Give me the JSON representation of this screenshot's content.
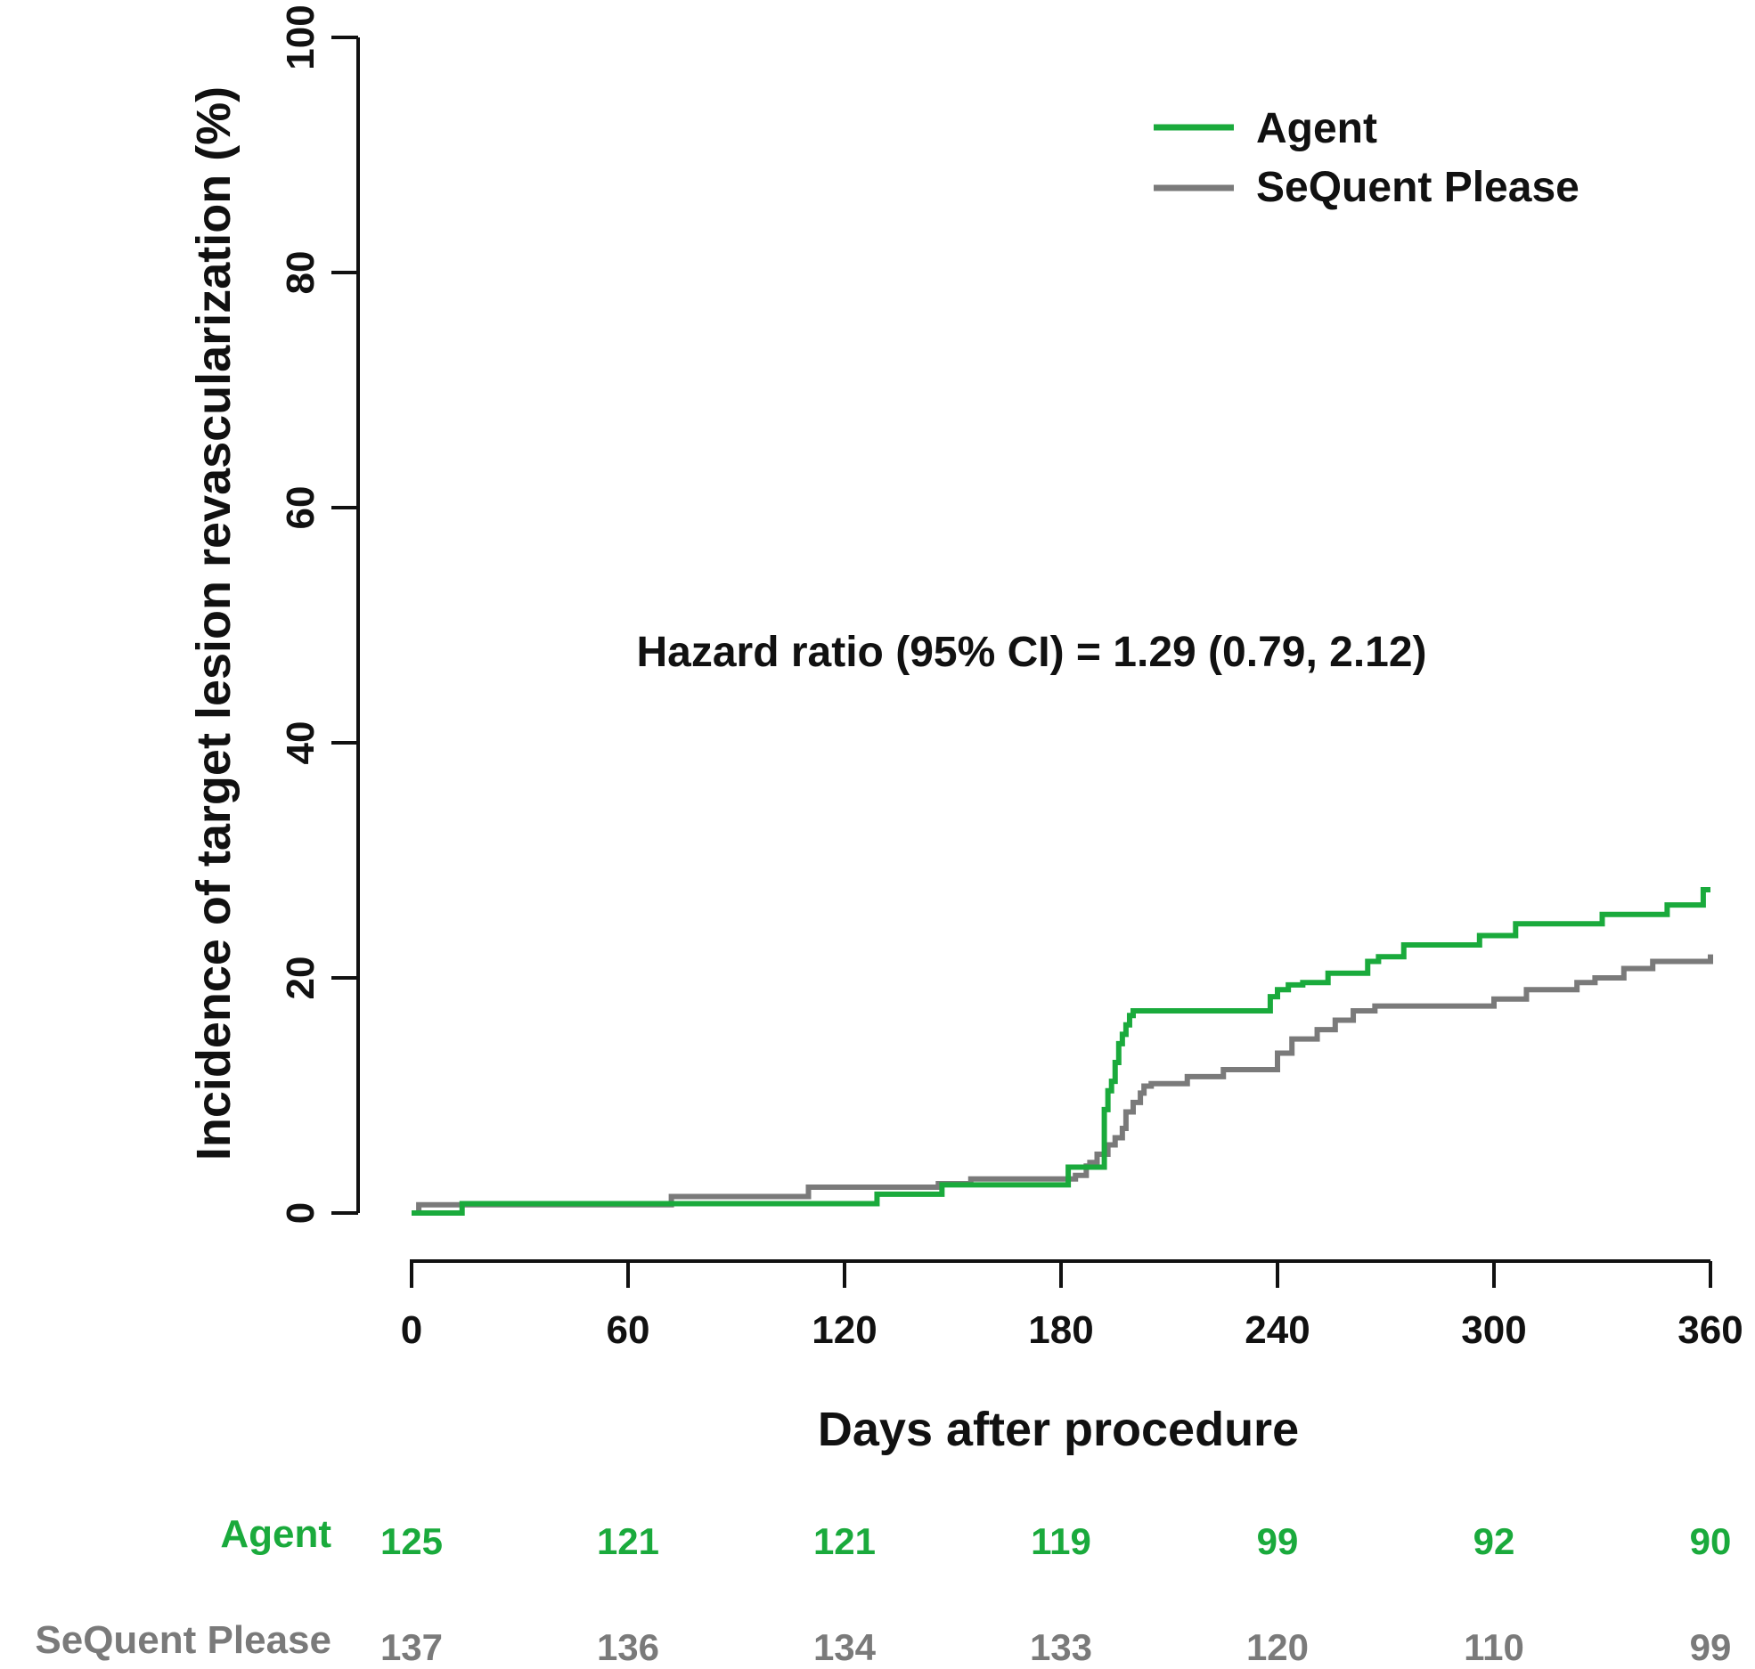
{
  "chart_data": {
    "type": "line",
    "step": true,
    "xlabel": "Days after procedure",
    "ylabel": "Incidence of target lesion revascularization (%)",
    "xlim": [
      0,
      360
    ],
    "ylim": [
      0,
      100
    ],
    "x_ticks": [
      0,
      60,
      120,
      180,
      240,
      300,
      360
    ],
    "y_ticks": [
      0,
      20,
      40,
      60,
      80,
      100
    ],
    "grid": false,
    "legend_position": "top-right",
    "annotation": "Hazard ratio (95% CI) = 1.29 (0.79, 2.12)",
    "series": [
      {
        "name": "Agent",
        "color": "#1aaa3c",
        "x": [
          0,
          14,
          129,
          147,
          182,
          192,
          193,
          194,
          195,
          196,
          197,
          198,
          199,
          200,
          202,
          238,
          240,
          243,
          247,
          254,
          265,
          268,
          275,
          296,
          306,
          330,
          348,
          358,
          360
        ],
        "y": [
          0,
          0.8,
          1.6,
          2.4,
          3.9,
          8.8,
          10.4,
          11.2,
          12.8,
          14.4,
          15.2,
          16.0,
          16.8,
          17.2,
          17.2,
          18.4,
          19.0,
          19.4,
          19.6,
          20.4,
          21.4,
          21.8,
          22.8,
          23.6,
          24.6,
          25.4,
          26.2,
          27.5,
          27.5
        ]
      },
      {
        "name": "SeQuent Please",
        "color": "#7a7a7a",
        "x": [
          0,
          2,
          72,
          110,
          146,
          155,
          184,
          187,
          188,
          190,
          193,
          195,
          197,
          198,
          200,
          202,
          203,
          205,
          207,
          215,
          225,
          240,
          244,
          251,
          256,
          261,
          267,
          300,
          309,
          323,
          328,
          336,
          344,
          360
        ],
        "y": [
          0,
          0.7,
          1.4,
          2.2,
          2.5,
          2.9,
          3.2,
          4.0,
          4.3,
          5.0,
          5.8,
          6.4,
          7.2,
          8.6,
          9.4,
          10.2,
          10.8,
          11.0,
          11.0,
          11.6,
          12.2,
          13.6,
          14.8,
          15.6,
          16.4,
          17.2,
          17.6,
          18.2,
          19.0,
          19.6,
          20.0,
          20.8,
          21.4,
          22.0
        ]
      }
    ],
    "risk_table": {
      "times": [
        0,
        60,
        120,
        180,
        240,
        300,
        360
      ],
      "rows": [
        {
          "label": "Agent",
          "color": "#1aaa3c",
          "values": [
            "125",
            "121",
            "121",
            "119",
            "99",
            "92",
            "90"
          ]
        },
        {
          "label": "SeQuent Please",
          "color": "#7a7a7a",
          "values": [
            "137",
            "136",
            "134",
            "133",
            "120",
            "110",
            "99"
          ]
        }
      ]
    }
  }
}
